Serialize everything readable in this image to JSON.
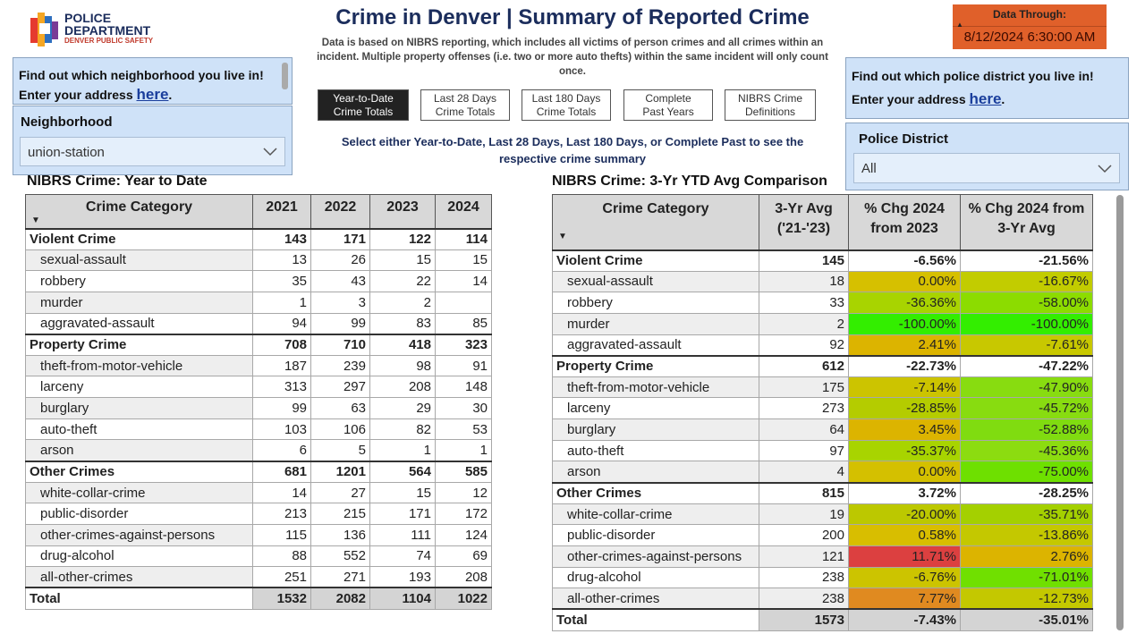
{
  "header": {
    "logo": {
      "line1": "POLICE",
      "line2": "DEPARTMENT",
      "line3": "DENVER PUBLIC SAFETY"
    },
    "title": "Crime in Denver | Summary of Reported Crime",
    "description": "Data is based on NIBRS reporting, which includes all victims of person crimes and all crimes within an incident. Multiple property offenses (i.e. two or more auto thefts) within the same incident will only count once.",
    "data_through": {
      "label": "Data Through:",
      "value": "8/12/2024 6:30:00 AM"
    }
  },
  "buttons": [
    "Year-to-Date Crime Totals",
    "Last 28 Days Crime Totals",
    "Last 180 Days Crime Totals",
    "Complete Past Years",
    "NIBRS Crime Definitions"
  ],
  "instruction": "Select either Year-to-Date, Last 28 Days, Last 180 Days, or Complete Past to see the respective crime summary",
  "left_panel": {
    "find": "Find out which neighborhood you live in!",
    "address": "Enter your address",
    "link": "here",
    "suffix": ".",
    "slicer_label": "Neighborhood",
    "slicer_value": "union-station"
  },
  "right_panel": {
    "find": "Find out which police district you live in!",
    "address": "Enter your address",
    "link": "here",
    "suffix": ".",
    "slicer_label": "Police District",
    "slicer_value": "All"
  },
  "table_left": {
    "title": "NIBRS Crime: Year to Date",
    "headers": [
      "Crime Category",
      "2021",
      "2022",
      "2023",
      "2024"
    ],
    "groups": [
      {
        "name": "Violent Crime",
        "values": [
          143,
          171,
          122,
          114
        ],
        "items": [
          {
            "name": "sexual-assault",
            "values": [
              13,
              26,
              15,
              15
            ]
          },
          {
            "name": "robbery",
            "values": [
              35,
              43,
              22,
              14
            ]
          },
          {
            "name": "murder",
            "values": [
              1,
              3,
              2,
              null
            ]
          },
          {
            "name": "aggravated-assault",
            "values": [
              94,
              99,
              83,
              85
            ]
          }
        ]
      },
      {
        "name": "Property Crime",
        "values": [
          708,
          710,
          418,
          323
        ],
        "items": [
          {
            "name": "theft-from-motor-vehicle",
            "values": [
              187,
              239,
              98,
              91
            ]
          },
          {
            "name": "larceny",
            "values": [
              313,
              297,
              208,
              148
            ]
          },
          {
            "name": "burglary",
            "values": [
              99,
              63,
              29,
              30
            ]
          },
          {
            "name": "auto-theft",
            "values": [
              103,
              106,
              82,
              53
            ]
          },
          {
            "name": "arson",
            "values": [
              6,
              5,
              1,
              1
            ]
          }
        ]
      },
      {
        "name": "Other Crimes",
        "values": [
          681,
          1201,
          564,
          585
        ],
        "items": [
          {
            "name": "white-collar-crime",
            "values": [
              14,
              27,
              15,
              12
            ]
          },
          {
            "name": "public-disorder",
            "values": [
              213,
              215,
              171,
              172
            ]
          },
          {
            "name": "other-crimes-against-persons",
            "values": [
              115,
              136,
              111,
              124
            ]
          },
          {
            "name": "drug-alcohol",
            "values": [
              88,
              552,
              74,
              69
            ]
          },
          {
            "name": "all-other-crimes",
            "values": [
              251,
              271,
              193,
              208
            ]
          }
        ]
      }
    ],
    "total": {
      "name": "Total",
      "values": [
        1532,
        2082,
        1104,
        1022
      ]
    }
  },
  "table_right": {
    "title": "NIBRS Crime: 3-Yr YTD Avg Comparison",
    "headers": [
      "Crime Category",
      "3-Yr Avg ('21-'23)",
      "% Chg 2024 from 2023",
      "% Chg 2024 from 3-Yr Avg"
    ],
    "groups": [
      {
        "name": "Violent Crime",
        "values": [
          145,
          "-6.56%",
          "-21.56%"
        ],
        "items": [
          {
            "name": "sexual-assault",
            "values": [
              18,
              "0.00%",
              "-16.67%"
            ],
            "colors": [
              "#d6c000",
              "#c2cc00"
            ]
          },
          {
            "name": "robbery",
            "values": [
              33,
              "-36.36%",
              "-58.00%"
            ],
            "colors": [
              "#a8d400",
              "#8cdc00"
            ]
          },
          {
            "name": "murder",
            "values": [
              2,
              "-100.00%",
              "-100.00%"
            ],
            "colors": [
              "#33ee00",
              "#33ee00"
            ]
          },
          {
            "name": "aggravated-assault",
            "values": [
              92,
              "2.41%",
              "-7.61%"
            ],
            "colors": [
              "#dcb400",
              "#c8c800"
            ]
          }
        ]
      },
      {
        "name": "Property Crime",
        "values": [
          612,
          "-22.73%",
          "-47.22%"
        ],
        "items": [
          {
            "name": "theft-from-motor-vehicle",
            "values": [
              175,
              "-7.14%",
              "-47.90%"
            ],
            "colors": [
              "#ccc400",
              "#88dc10"
            ]
          },
          {
            "name": "larceny",
            "values": [
              273,
              "-28.85%",
              "-45.72%"
            ],
            "colors": [
              "#b4cc00",
              "#88dc10"
            ]
          },
          {
            "name": "burglary",
            "values": [
              64,
              "3.45%",
              "-52.88%"
            ],
            "colors": [
              "#dcb400",
              "#80dc10"
            ]
          },
          {
            "name": "auto-theft",
            "values": [
              97,
              "-35.37%",
              "-45.36%"
            ],
            "colors": [
              "#a8d400",
              "#8cdc10"
            ]
          },
          {
            "name": "arson",
            "values": [
              4,
              "0.00%",
              "-75.00%"
            ],
            "colors": [
              "#d4c000",
              "#6ee000"
            ]
          }
        ]
      },
      {
        "name": "Other Crimes",
        "values": [
          815,
          "3.72%",
          "-28.25%"
        ],
        "items": [
          {
            "name": "white-collar-crime",
            "values": [
              19,
              "-20.00%",
              "-35.71%"
            ],
            "colors": [
              "#bcc800",
              "#a4d000"
            ]
          },
          {
            "name": "public-disorder",
            "values": [
              200,
              "0.58%",
              "-13.86%"
            ],
            "colors": [
              "#d8be00",
              "#c4c800"
            ]
          },
          {
            "name": "other-crimes-against-persons",
            "values": [
              121,
              "11.71%",
              "2.76%"
            ],
            "colors": [
              "#dc4040",
              "#dcb400"
            ]
          },
          {
            "name": "drug-alcohol",
            "values": [
              238,
              "-6.76%",
              "-71.01%"
            ],
            "colors": [
              "#ccc400",
              "#70e000"
            ]
          },
          {
            "name": "all-other-crimes",
            "values": [
              238,
              "7.77%",
              "-12.73%"
            ],
            "colors": [
              "#e08a20",
              "#c4c800"
            ]
          }
        ]
      }
    ],
    "total": {
      "name": "Total",
      "values": [
        1573,
        "-7.43%",
        "-35.01%"
      ]
    }
  }
}
